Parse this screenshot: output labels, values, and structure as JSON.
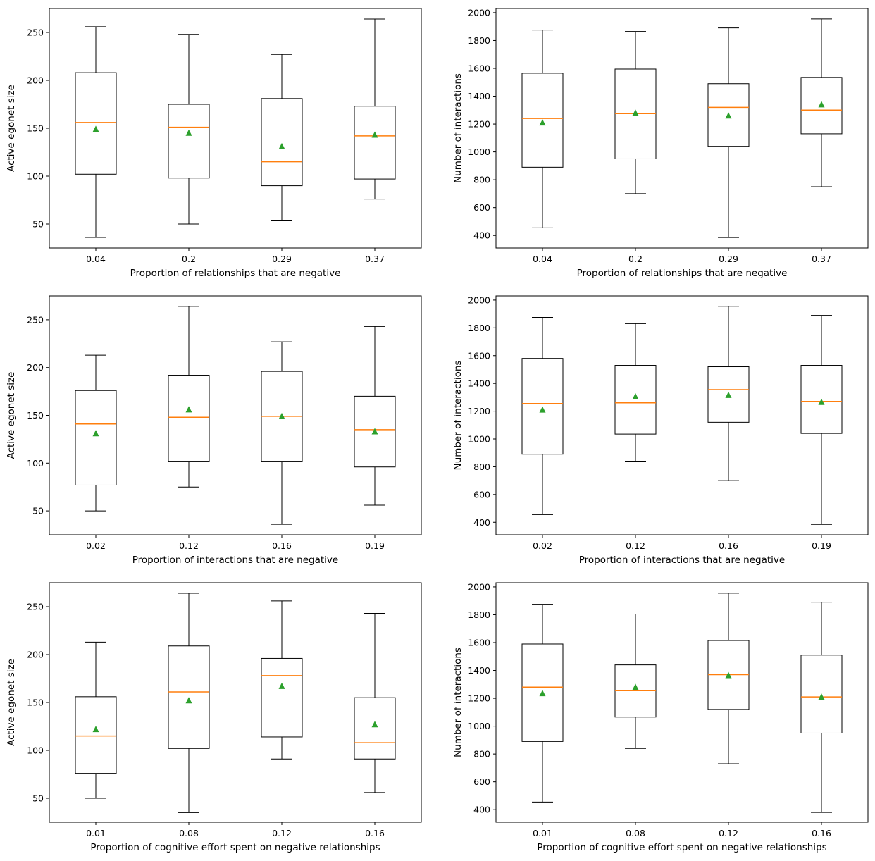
{
  "chart_data": [
    {
      "type": "box",
      "title": "",
      "xlabel": "Proportion of relationships that are negative",
      "ylabel": "Active egonet size",
      "categories": [
        "0.04",
        "0.2",
        "0.29",
        "0.37"
      ],
      "ylim": [
        25,
        275
      ],
      "yticks": [
        50,
        100,
        150,
        200,
        250
      ],
      "boxes": [
        {
          "whislo": 36,
          "q1": 102,
          "med": 156,
          "q3": 208,
          "whishi": 256,
          "mean": 149
        },
        {
          "whislo": 50,
          "q1": 98,
          "med": 151,
          "q3": 175,
          "whishi": 248,
          "mean": 145
        },
        {
          "whislo": 54,
          "q1": 90,
          "med": 115,
          "q3": 181,
          "whishi": 227,
          "mean": 131
        },
        {
          "whislo": 76,
          "q1": 97,
          "med": 142,
          "q3": 173,
          "whishi": 264,
          "mean": 143
        }
      ]
    },
    {
      "type": "box",
      "title": "",
      "xlabel": "Proportion of relationships that are negative",
      "ylabel": "Number of interactions",
      "categories": [
        "0.04",
        "0.2",
        "0.29",
        "0.37"
      ],
      "ylim": [
        310,
        2030
      ],
      "yticks": [
        400,
        600,
        800,
        1000,
        1200,
        1400,
        1600,
        1800,
        2000
      ],
      "boxes": [
        {
          "whislo": 455,
          "q1": 890,
          "med": 1240,
          "q3": 1565,
          "whishi": 1875,
          "mean": 1210
        },
        {
          "whislo": 700,
          "q1": 950,
          "med": 1275,
          "q3": 1595,
          "whishi": 1865,
          "mean": 1280
        },
        {
          "whislo": 385,
          "q1": 1040,
          "med": 1320,
          "q3": 1490,
          "whishi": 1890,
          "mean": 1260
        },
        {
          "whislo": 750,
          "q1": 1130,
          "med": 1300,
          "q3": 1535,
          "whishi": 1955,
          "mean": 1340
        }
      ]
    },
    {
      "type": "box",
      "title": "",
      "xlabel": "Proportion of interactions that are negative",
      "ylabel": "Active egonet size",
      "categories": [
        "0.02",
        "0.12",
        "0.16",
        "0.19"
      ],
      "ylim": [
        25,
        275
      ],
      "yticks": [
        50,
        100,
        150,
        200,
        250
      ],
      "boxes": [
        {
          "whislo": 50,
          "q1": 77,
          "med": 141,
          "q3": 176,
          "whishi": 213,
          "mean": 131
        },
        {
          "whislo": 75,
          "q1": 102,
          "med": 148,
          "q3": 192,
          "whishi": 264,
          "mean": 156
        },
        {
          "whislo": 36,
          "q1": 102,
          "med": 149,
          "q3": 196,
          "whishi": 227,
          "mean": 149
        },
        {
          "whislo": 56,
          "q1": 96,
          "med": 135,
          "q3": 170,
          "whishi": 243,
          "mean": 133
        }
      ]
    },
    {
      "type": "box",
      "title": "",
      "xlabel": "Proportion of interactions that are negative",
      "ylabel": "Number of interactions",
      "categories": [
        "0.02",
        "0.12",
        "0.16",
        "0.19"
      ],
      "ylim": [
        310,
        2030
      ],
      "yticks": [
        400,
        600,
        800,
        1000,
        1200,
        1400,
        1600,
        1800,
        2000
      ],
      "boxes": [
        {
          "whislo": 455,
          "q1": 890,
          "med": 1255,
          "q3": 1580,
          "whishi": 1875,
          "mean": 1210
        },
        {
          "whislo": 840,
          "q1": 1035,
          "med": 1260,
          "q3": 1530,
          "whishi": 1830,
          "mean": 1305
        },
        {
          "whislo": 700,
          "q1": 1120,
          "med": 1355,
          "q3": 1520,
          "whishi": 1955,
          "mean": 1315
        },
        {
          "whislo": 385,
          "q1": 1040,
          "med": 1270,
          "q3": 1530,
          "whishi": 1890,
          "mean": 1265
        }
      ]
    },
    {
      "type": "box",
      "title": "",
      "xlabel": "Proportion of cognitive effort spent on negative relationships",
      "ylabel": "Active egonet size",
      "categories": [
        "0.01",
        "0.08",
        "0.12",
        "0.16"
      ],
      "ylim": [
        25,
        275
      ],
      "yticks": [
        50,
        100,
        150,
        200,
        250
      ],
      "boxes": [
        {
          "whislo": 50,
          "q1": 76,
          "med": 115,
          "q3": 156,
          "whishi": 213,
          "mean": 122
        },
        {
          "whislo": 35,
          "q1": 102,
          "med": 161,
          "q3": 209,
          "whishi": 264,
          "mean": 152
        },
        {
          "whislo": 91,
          "q1": 114,
          "med": 178,
          "q3": 196,
          "whishi": 256,
          "mean": 167
        },
        {
          "whislo": 56,
          "q1": 91,
          "med": 108,
          "q3": 155,
          "whishi": 243,
          "mean": 127
        }
      ]
    },
    {
      "type": "box",
      "title": "",
      "xlabel": "Proportion of cognitive effort spent on negative relationships",
      "ylabel": "Number of interactions",
      "categories": [
        "0.01",
        "0.08",
        "0.12",
        "0.16"
      ],
      "ylim": [
        310,
        2030
      ],
      "yticks": [
        400,
        600,
        800,
        1000,
        1200,
        1400,
        1600,
        1800,
        2000
      ],
      "boxes": [
        {
          "whislo": 455,
          "q1": 890,
          "med": 1280,
          "q3": 1590,
          "whishi": 1875,
          "mean": 1235
        },
        {
          "whislo": 840,
          "q1": 1065,
          "med": 1255,
          "q3": 1440,
          "whishi": 1805,
          "mean": 1280
        },
        {
          "whislo": 730,
          "q1": 1120,
          "med": 1370,
          "q3": 1615,
          "whishi": 1955,
          "mean": 1365
        },
        {
          "whislo": 380,
          "q1": 950,
          "med": 1210,
          "q3": 1510,
          "whishi": 1890,
          "mean": 1210
        }
      ]
    }
  ],
  "colors": {
    "median": "#ff7f0e",
    "mean": "#2ca02c",
    "box": "#000000"
  }
}
